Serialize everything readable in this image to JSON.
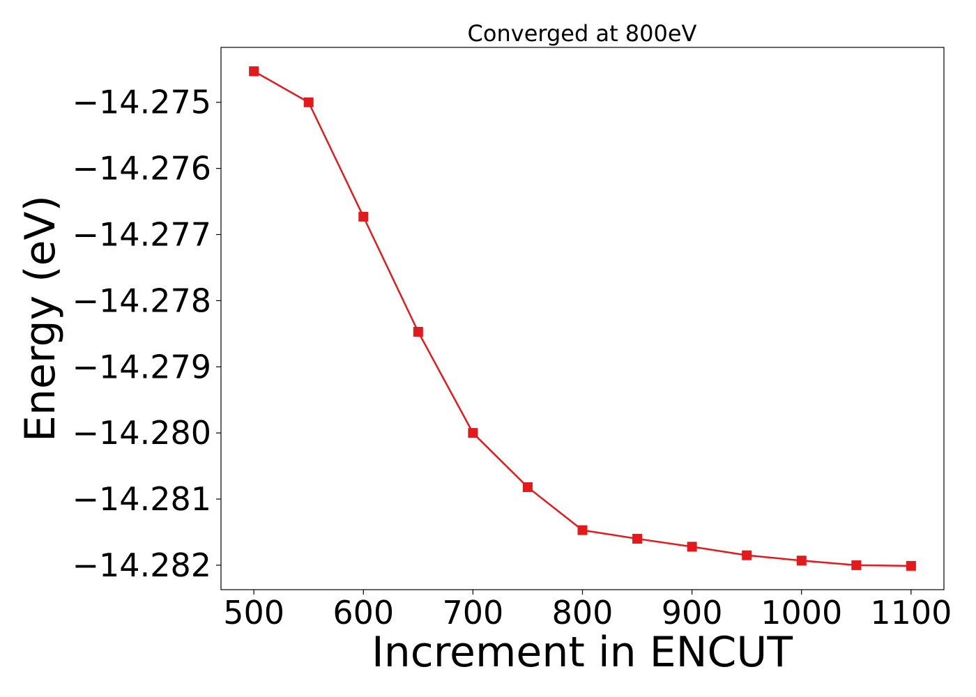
{
  "chart_data": {
    "type": "line",
    "title": "Converged at 800eV",
    "xlabel": "Increment in ENCUT",
    "ylabel": "Energy (eV)",
    "xlim": [
      470,
      1130
    ],
    "ylim": [
      -14.28237,
      -14.27417
    ],
    "xticks": [
      500,
      600,
      700,
      800,
      900,
      1000,
      1100
    ],
    "xtick_labels": [
      "500",
      "600",
      "700",
      "800",
      "900",
      "1000",
      "1100"
    ],
    "yticks": [
      -14.275,
      -14.276,
      -14.277,
      -14.278,
      -14.279,
      -14.28,
      -14.281,
      -14.282
    ],
    "ytick_labels": [
      "−14.275",
      "−14.276",
      "−14.277",
      "−14.278",
      "−14.279",
      "−14.280",
      "−14.281",
      "−14.282"
    ],
    "grid": false,
    "series": [
      {
        "color": "#e31a1c",
        "marker": "square",
        "x": [
          500,
          550,
          600,
          650,
          700,
          750,
          800,
          850,
          900,
          950,
          1000,
          1050,
          1100
        ],
        "y": [
          -14.27453,
          -14.275,
          -14.27673,
          -14.27847,
          -14.28,
          -14.28082,
          -14.28147,
          -14.2816,
          -14.28172,
          -14.28185,
          -14.28193,
          -14.282,
          -14.28201
        ]
      }
    ]
  }
}
